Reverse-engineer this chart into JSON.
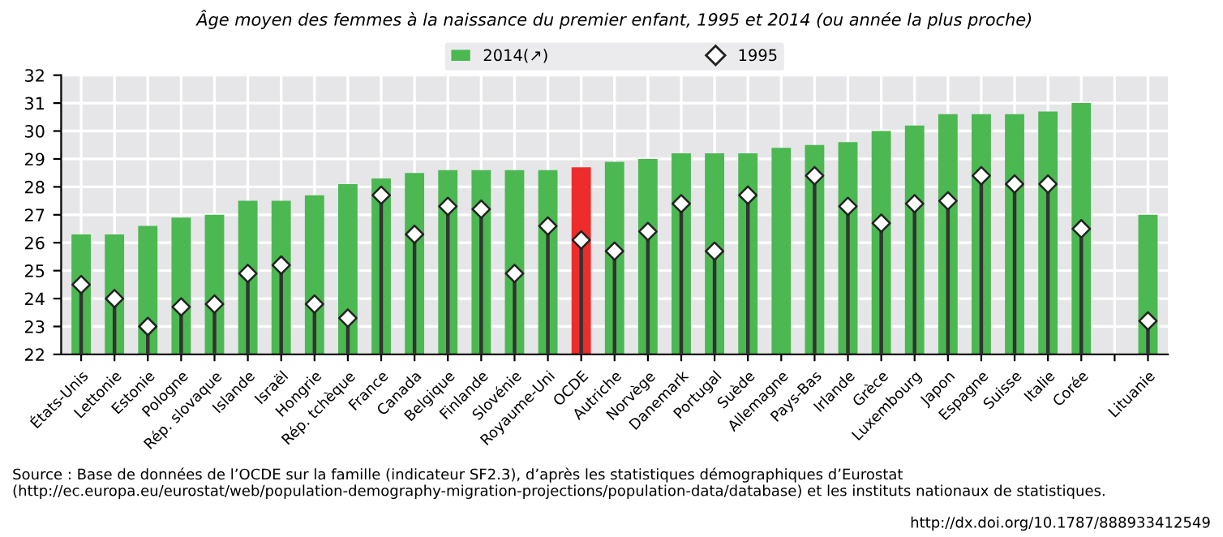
{
  "chart_data": {
    "type": "bar",
    "title": "Âge moyen des femmes à la naissance du premier enfant, 1995 et 2014 (ou année la plus proche)",
    "categories": [
      "États-Unis",
      "Lettonie",
      "Estonie",
      "Pologne",
      "Rép. slovaque",
      "Islande",
      "Israël",
      "Hongrie",
      "Rép. tchèque",
      "France",
      "Canada",
      "Belgique",
      "Finlande",
      "Slovénie",
      "Royaume-Uni",
      "OCDE",
      "Autriche",
      "Norvège",
      "Danemark",
      "Portugal",
      "Suède",
      "Allemagne",
      "Pays-Bas",
      "Irlande",
      "Grèce",
      "Luxembourg",
      "Japon",
      "Espagne",
      "Suisse",
      "Italie",
      "Corée",
      null,
      "Lituanie"
    ],
    "series": [
      {
        "name": "2014(↗)",
        "color": "#4bb851",
        "colors": [
          "#4bb851",
          "#4bb851",
          "#4bb851",
          "#4bb851",
          "#4bb851",
          "#4bb851",
          "#4bb851",
          "#4bb851",
          "#4bb851",
          "#4bb851",
          "#4bb851",
          "#4bb851",
          "#4bb851",
          "#4bb851",
          "#4bb851",
          "#ee2c2c",
          "#4bb851",
          "#4bb851",
          "#4bb851",
          "#4bb851",
          "#4bb851",
          "#4bb851",
          "#4bb851",
          "#4bb851",
          "#4bb851",
          "#4bb851",
          "#4bb851",
          "#4bb851",
          "#4bb851",
          "#4bb851",
          "#4bb851",
          "#4bb851",
          "#4bb851"
        ],
        "values": [
          26.3,
          26.3,
          26.6,
          26.9,
          27.0,
          27.5,
          27.5,
          27.7,
          28.1,
          28.3,
          28.5,
          28.6,
          28.6,
          28.6,
          28.6,
          28.7,
          28.9,
          29.0,
          29.2,
          29.2,
          29.2,
          29.4,
          29.5,
          29.6,
          30.0,
          30.2,
          30.6,
          30.6,
          30.6,
          30.7,
          31.0,
          null,
          27.0
        ]
      },
      {
        "name": "1995",
        "type": "lollipop",
        "color": "#ffffff",
        "marker": "diamond",
        "values": [
          24.5,
          24.0,
          23.0,
          23.7,
          23.8,
          24.9,
          25.2,
          23.8,
          23.3,
          27.7,
          26.3,
          27.3,
          27.2,
          24.9,
          26.6,
          26.1,
          25.7,
          26.4,
          27.4,
          25.7,
          27.7,
          null,
          28.4,
          27.3,
          26.7,
          27.4,
          27.5,
          28.4,
          28.1,
          28.1,
          26.5,
          null,
          23.2
        ]
      }
    ],
    "ylim": [
      22,
      32
    ],
    "yticks": [
      22,
      23,
      24,
      25,
      26,
      27,
      28,
      29,
      30,
      31,
      32
    ],
    "grid": true,
    "legend": "top",
    "annotations": [
      "Source : Base de données de l’OCDE sur la famille (indicateur SF2.3), d’après les statistiques démographiques d’Eurostat (http://ec.europa.eu/eurostat/web/population-demography-migration-projections/population-data/database) et les instituts nationaux de statistiques.",
      "http://dx.doi.org/10.1787/888933412549"
    ]
  }
}
